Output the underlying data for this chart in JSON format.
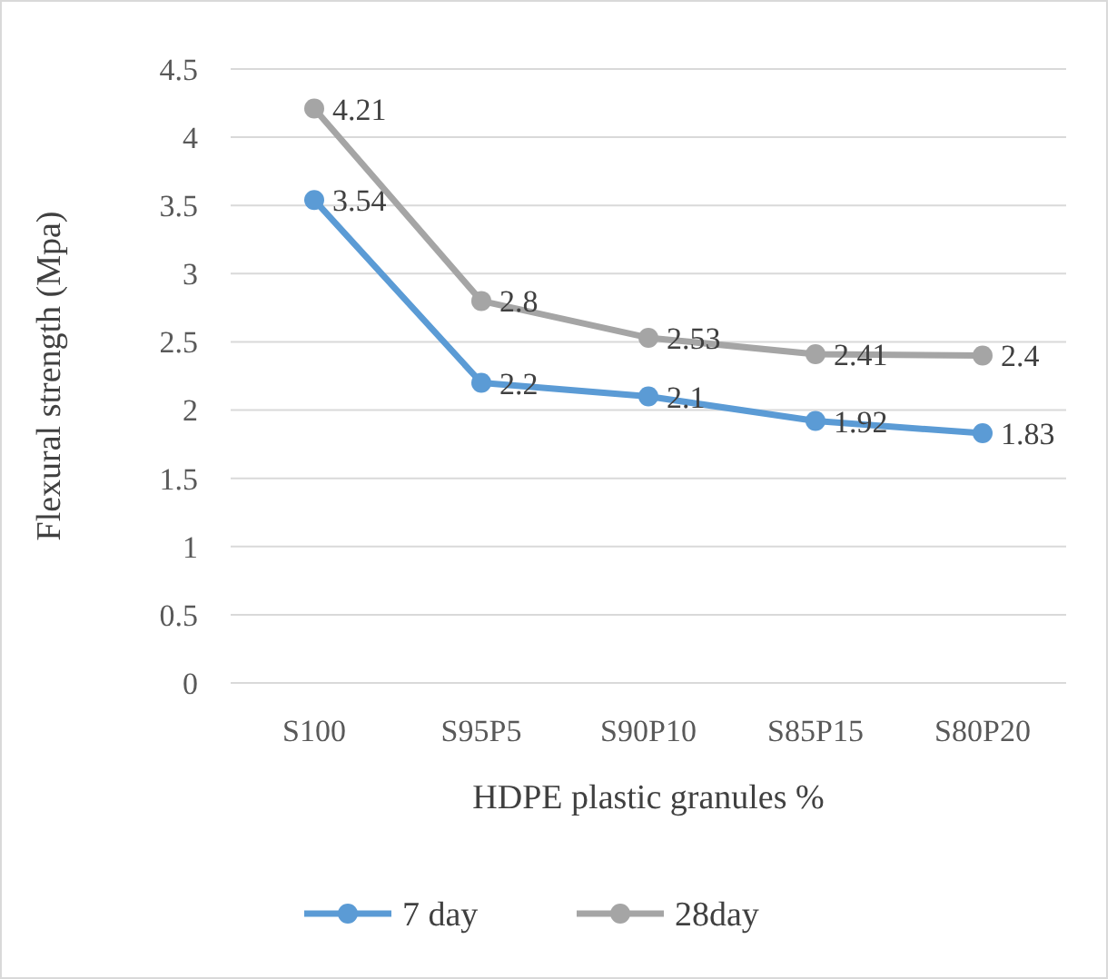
{
  "chart_data": {
    "type": "line",
    "xlabel": "HDPE plastic granules %",
    "ylabel": "Flexural strength (Mpa)",
    "categories": [
      "S100",
      "S95P5",
      "S90P10",
      "S85P15",
      "S80P20"
    ],
    "series": [
      {
        "name": "7 day",
        "color": "#5b9bd5",
        "values": [
          3.54,
          2.2,
          2.1,
          1.92,
          1.83
        ]
      },
      {
        "name": "28day",
        "color": "#a5a5a5",
        "values": [
          4.21,
          2.8,
          2.53,
          2.41,
          2.4
        ]
      }
    ],
    "ylim": [
      0,
      4.5
    ],
    "yticks": [
      0,
      {
        "value": 0.5,
        "label": "0.5"
      },
      1,
      {
        "value": 1.5,
        "label": "1.5"
      },
      2,
      {
        "value": 2.5,
        "label": "2.5"
      },
      3,
      {
        "value": 3.5,
        "label": "3.5"
      },
      4,
      {
        "value": 4.5,
        "label": "4.5"
      }
    ],
    "grid": "y",
    "legend": "bottom",
    "marker": "circle",
    "line_style": "solid",
    "data_labels": true
  }
}
